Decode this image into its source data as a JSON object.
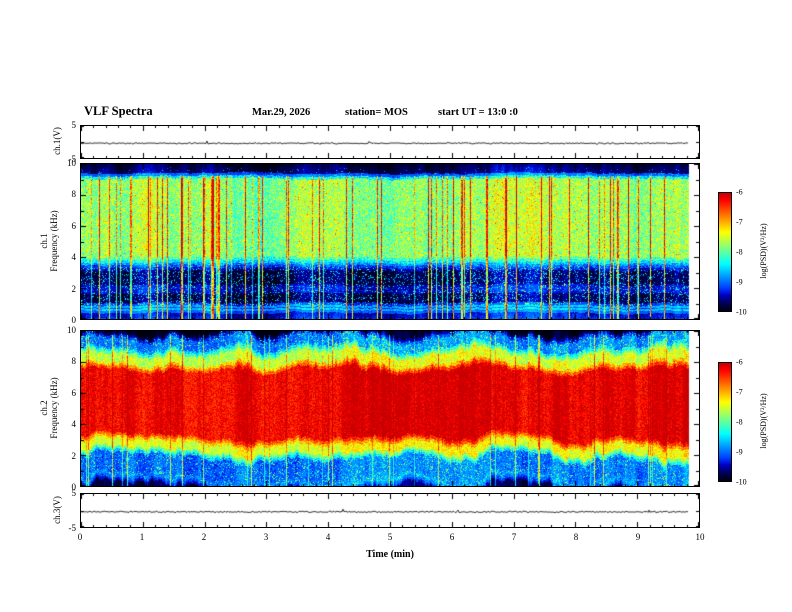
{
  "header": {
    "title": "VLF Spectra",
    "date": "Mar.29, 2026",
    "station": "station= MOS",
    "start_ut": "start UT =  13:0 :0"
  },
  "panels": {
    "ch1_wave": {
      "label": "ch.1(V)",
      "yticks": [
        5,
        -5
      ]
    },
    "ch1_spec": {
      "label_line1": "ch.1",
      "label_line2": "Frequency (kHz)",
      "yticks": [
        10,
        8,
        6,
        4,
        2,
        0
      ]
    },
    "ch2_spec": {
      "label_line1": "ch.2",
      "label_line2": "Frequency (kHz)",
      "yticks": [
        10,
        8,
        6,
        4,
        2,
        0
      ]
    },
    "ch3_wave": {
      "label": "ch.3(V)",
      "yticks": [
        5,
        -5
      ]
    }
  },
  "xaxis": {
    "label": "Time (min)",
    "ticks": [
      0,
      1,
      2,
      3,
      4,
      5,
      6,
      7,
      8,
      9,
      10
    ],
    "range": [
      0,
      10
    ]
  },
  "colorbars": [
    {
      "ticks": [
        -6,
        -7,
        -8,
        -9,
        -10
      ],
      "label": "log(PSD)(V²/Hz)"
    },
    {
      "ticks": [
        -6,
        -7,
        -8,
        -9,
        -10
      ],
      "label": "log(PSD)(V²/Hz)"
    }
  ],
  "colors": {
    "background": "#ffffff",
    "axis": "#000000",
    "colormap": "jet"
  },
  "chart_data": [
    {
      "id": "ch1_wave",
      "type": "line",
      "name": "ch.1 voltage trace",
      "ylabel": "ch.1(V)",
      "y_range_V": [
        -5,
        5
      ],
      "x_range_min": [
        0,
        10
      ],
      "mean_V": -0.4,
      "description": "near-flat voltage trace for the whole record",
      "data_end_min": 9.85
    },
    {
      "id": "ch1_spec",
      "type": "heatmap",
      "name": "ch.1 spectrogram",
      "ylabel": "ch.1 Frequency (kHz)",
      "y_range_kHz": [
        0,
        10
      ],
      "x_range_min": [
        0,
        10
      ],
      "xlabel": "Time (min)",
      "z_log_psd_range": [
        -10,
        -6
      ],
      "colormap": "jet",
      "data_end_min": 9.85,
      "profile": [
        {
          "f": [
            0,
            0.3
          ],
          "level": -9.35,
          "noise": 0.4,
          "speckle": 0,
          "speckle_amp": 0
        },
        {
          "f": [
            0.3,
            0.55
          ],
          "level": -9.6,
          "noise": 0.3,
          "speckle": 0,
          "speckle_amp": 0
        },
        {
          "f": [
            0.55,
            0.85
          ],
          "level": -8.15,
          "noise": 0.4,
          "speckle": 0,
          "speckle_amp": 0
        },
        {
          "f": [
            0.85,
            1.82
          ],
          "level": -9.8,
          "noise": 0.3,
          "speckle": 0.2,
          "speckle_amp": 1.6
        },
        {
          "f": [
            1.82,
            2.02
          ],
          "level": -8.9,
          "noise": 0.3,
          "speckle": 0.2,
          "speckle_amp": 1.2
        },
        {
          "f": [
            2.02,
            3.3
          ],
          "level": -9.8,
          "noise": 0.3,
          "speckle": 0.2,
          "speckle_amp": 1.6
        },
        {
          "f": [
            3.3,
            3.8
          ],
          "level": -8.8,
          "noise": 0.7,
          "speckle": 0.05,
          "speckle_amp": 1.0
        },
        {
          "f": [
            3.8,
            9.2
          ],
          "level": -7.8,
          "noise": 0.9,
          "speckle": 0.05,
          "speckle_amp": 0.9
        },
        {
          "f": [
            9.2,
            9.7
          ],
          "level": -9.7,
          "noise": 0.3,
          "speckle": 0.05,
          "speckle_amp": 1.0
        },
        {
          "f": [
            9.7,
            10
          ],
          "level": -9.85,
          "noise": 0.2,
          "speckle": 0,
          "speckle_amp": 0
        }
      ],
      "vertical_streaks": {
        "probability": 0.12,
        "min": 0.9,
        "max": 2.6,
        "max_f": 9.2
      },
      "column_wobble": {
        "shift": 0.12,
        "scale": 0.02
      },
      "column_level": 0.3,
      "wobble_center_kHz": 5
    },
    {
      "id": "ch2_spec",
      "type": "heatmap",
      "name": "ch.2 spectrogram",
      "ylabel": "ch.2 Frequency (kHz)",
      "y_range_kHz": [
        0,
        10
      ],
      "x_range_min": [
        0,
        10
      ],
      "xlabel": "Time (min)",
      "z_log_psd_range": [
        -10,
        -6
      ],
      "colormap": "jet",
      "data_end_min": 9.85,
      "profile": [
        {
          "f": [
            0,
            0.15
          ],
          "level": -9.7,
          "noise": 0.2,
          "speckle": 0,
          "speckle_amp": 0
        },
        {
          "f": [
            0.15,
            0.38
          ],
          "level": -8.4,
          "noise": 0.4,
          "speckle": 0,
          "speckle_amp": 0
        },
        {
          "f": [
            0.38,
            2.1
          ],
          "level": -9.0,
          "noise": 0.5,
          "speckle": 0.15,
          "speckle_amp": 1.3
        },
        {
          "f": [
            2.1,
            3.0
          ],
          "level": -7.4,
          "noise": 0.6,
          "speckle": 0,
          "speckle_amp": 0
        },
        {
          "f": [
            3.0,
            7.7
          ],
          "level": -6.15,
          "noise": 0.55,
          "speckle": 0,
          "speckle_amp": 0
        },
        {
          "f": [
            7.7,
            8.7
          ],
          "level": -7.5,
          "noise": 0.7,
          "speckle": 0,
          "speckle_amp": 0
        },
        {
          "f": [
            8.7,
            9.75
          ],
          "level": -8.9,
          "noise": 0.5,
          "speckle": 0.15,
          "speckle_amp": 1.4
        },
        {
          "f": [
            9.75,
            10
          ],
          "level": -9.95,
          "noise": 0.15,
          "speckle": 0,
          "speckle_amp": 0
        }
      ],
      "vertical_streaks": {
        "probability": 0.06,
        "min": 0.5,
        "max": 1.5,
        "max_f": 9.75
      },
      "column_wobble": {
        "shift": 0.4,
        "scale": 0.15
      },
      "column_level": 0.35,
      "wobble_center_kHz": 5.3
    },
    {
      "id": "ch3_wave",
      "type": "line",
      "name": "ch.3 voltage trace",
      "ylabel": "ch.3(V)",
      "y_range_V": [
        -5,
        5
      ],
      "x_range_min": [
        0,
        10
      ],
      "mean_V": -0.4,
      "description": "near-flat voltage trace for the whole record",
      "data_end_min": 9.85
    }
  ]
}
